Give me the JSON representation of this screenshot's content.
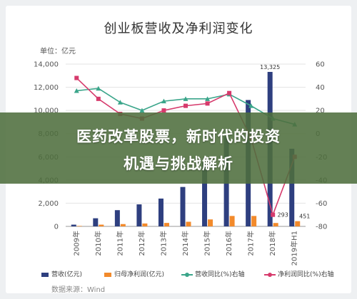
{
  "chart_data": {
    "type": "bar",
    "title": "创业板营收及净利润变化",
    "unit_label": "单位：亿元",
    "categories": [
      "2009年",
      "2010年",
      "2011年",
      "2012年",
      "2013年",
      "2014年",
      "2015年",
      "2016年",
      "2017年",
      "2018年",
      "2019年H1"
    ],
    "y_left": {
      "ticks": [
        "0",
        "2,000",
        "4,000",
        "6,000",
        "8,000",
        "10,000",
        "12,000",
        "14,000"
      ],
      "range": [
        0,
        14000
      ]
    },
    "y_right": {
      "ticks": [
        "60",
        "40",
        "20",
        "0",
        "-20",
        "-40",
        "-60",
        "-80"
      ],
      "range": [
        -80,
        60
      ]
    },
    "series": [
      {
        "name": "营收(亿元)",
        "axis": "left",
        "kind": "bar",
        "color": "#2e3f7f",
        "values": [
          150,
          700,
          1400,
          1900,
          2400,
          3400,
          5500,
          7700,
          10900,
          13325,
          6700
        ]
      },
      {
        "name": "归母净利润(亿元)",
        "axis": "left",
        "kind": "bar",
        "color": "#f28a2b",
        "values": [
          40,
          150,
          200,
          250,
          300,
          400,
          600,
          900,
          900,
          293,
          451
        ]
      },
      {
        "name": "营收同比(%)右轴",
        "axis": "right",
        "kind": "line",
        "color": "#3aa58a",
        "values": [
          37,
          39,
          27,
          20,
          28,
          30,
          30,
          34,
          24,
          13,
          8
        ]
      },
      {
        "name": "净利润同比(%)右轴",
        "axis": "right",
        "kind": "line",
        "color": "#d63a6c",
        "values": [
          48,
          30,
          17,
          13,
          20,
          24,
          26,
          35,
          -4,
          -70,
          -20
        ]
      }
    ],
    "data_labels": [
      {
        "series": 0,
        "index": 9,
        "text": "13,325"
      },
      {
        "series": 1,
        "index": 9,
        "text": "293"
      },
      {
        "series": 1,
        "index": 10,
        "text": "451"
      }
    ],
    "legend_position": "bottom",
    "grid": true
  },
  "banner": {
    "line1": "医药改革股票，新时代的投资",
    "line2": "机遇与挑战解析"
  },
  "source": "数据来源：Wind"
}
